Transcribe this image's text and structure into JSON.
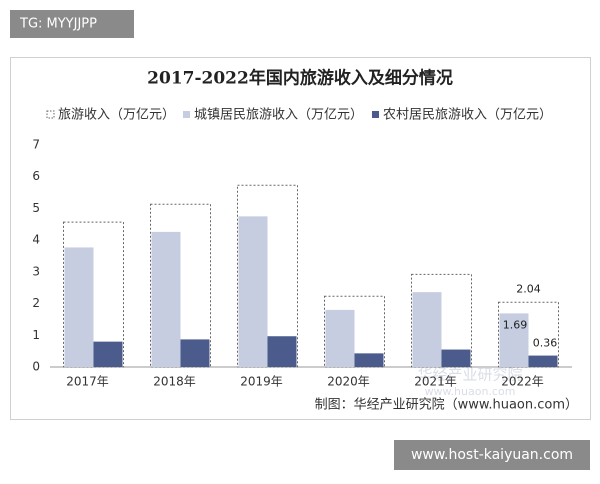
{
  "badge": "TG: MYYJJPP",
  "chart_data": {
    "type": "bar",
    "title": "2017-2022年国内旅游收入及细分情况",
    "categories": [
      "2017年",
      "2018年",
      "2019年",
      "2020年",
      "2021年",
      "2022年"
    ],
    "series": [
      {
        "name": "旅游收入（万亿元）",
        "color": "#666666",
        "dashed": true,
        "values": [
          4.57,
          5.13,
          5.73,
          2.23,
          2.92,
          2.04
        ]
      },
      {
        "name": "城镇居民旅游收入（万亿元）",
        "color": "#c6cde0",
        "values": [
          3.77,
          4.26,
          4.75,
          1.8,
          2.36,
          1.69
        ]
      },
      {
        "name": "农村居民旅游收入（万亿元）",
        "color": "#4b5b8c",
        "values": [
          0.8,
          0.87,
          0.97,
          0.43,
          0.55,
          0.36
        ]
      }
    ],
    "ylim": [
      0,
      7
    ],
    "yticks": [
      0,
      1,
      2,
      3,
      4,
      5,
      6,
      7
    ],
    "grid": false,
    "source": "制图：华经产业研究院（www.huaon.com）"
  },
  "watermarks": [
    "华经产业研究院",
    "www.huaon.com"
  ],
  "footer_badge": "www.host-kaiyuan.com"
}
